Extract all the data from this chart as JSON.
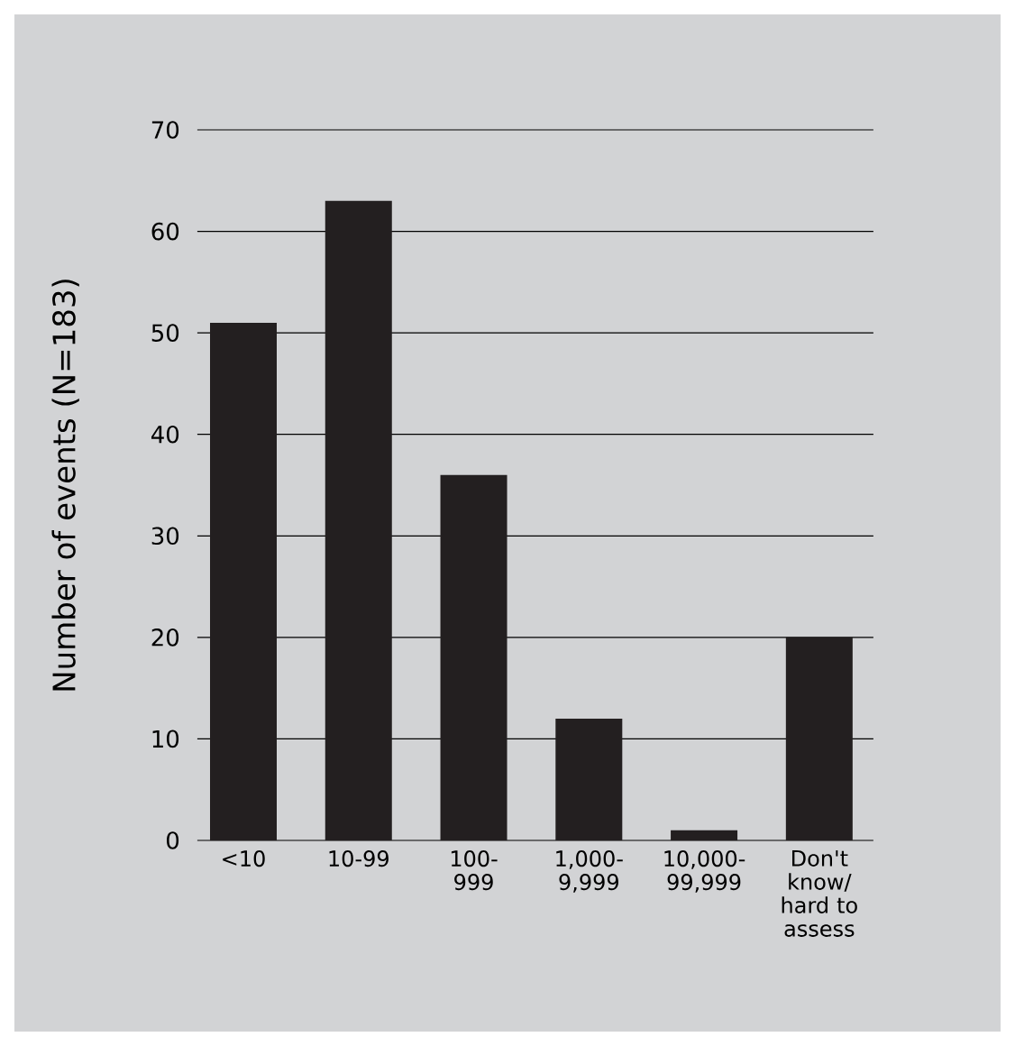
{
  "chart_data": {
    "type": "bar",
    "ylabel": "Number of events (N=183)",
    "categories": [
      "<10",
      "10-99",
      "100-999",
      "1,000-9,999",
      "10,000-99,999",
      "Don't know/ hard to assess"
    ],
    "values": [
      51,
      63,
      36,
      12,
      1,
      20
    ],
    "color": "#231f20",
    "ylim": [
      0,
      70
    ],
    "yticks": [
      0,
      10,
      20,
      30,
      40,
      50,
      60,
      70
    ],
    "grid": "y"
  }
}
